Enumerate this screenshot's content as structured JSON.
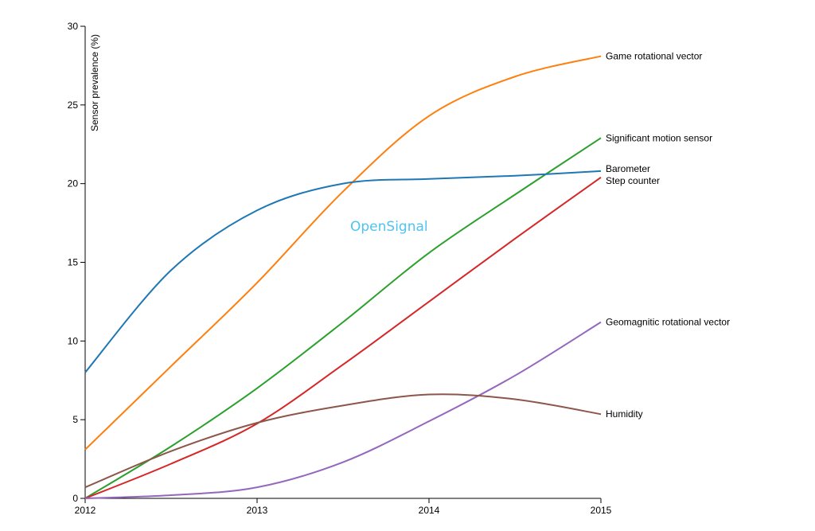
{
  "chart_data": {
    "type": "line",
    "title": "",
    "xlabel": "",
    "ylabel": "Sensor prevalence (%)",
    "watermark": "OpenSignal",
    "xlim": [
      2012,
      2015
    ],
    "ylim": [
      0,
      30
    ],
    "xticks": [
      "2012",
      "2013",
      "2014",
      "2015"
    ],
    "yticks": [
      "0",
      "5",
      "10",
      "15",
      "20",
      "25",
      "30"
    ],
    "grid": false,
    "legend": "end-of-line labels, right",
    "x": [
      2012,
      2012.5,
      2013,
      2013.5,
      2014,
      2014.5,
      2015
    ],
    "series": [
      {
        "name": "Game rotational vector",
        "color": "#ff7f0e",
        "values": [
          3.1,
          8.4,
          13.7,
          19.5,
          24.3,
          26.8,
          28.1
        ]
      },
      {
        "name": "Significant motion sensor",
        "color": "#2ca02c",
        "values": [
          0,
          3.3,
          7.0,
          11.2,
          15.6,
          19.3,
          22.9
        ]
      },
      {
        "name": "Barometer",
        "color": "#1f77b4",
        "values": [
          8.0,
          14.5,
          18.3,
          20.0,
          20.3,
          20.5,
          20.8
        ]
      },
      {
        "name": "Step counter",
        "color": "#d62728",
        "values": [
          0,
          2.2,
          4.75,
          8.5,
          12.5,
          16.5,
          20.4
        ]
      },
      {
        "name": "Geomagnitic rotational vector",
        "color": "#9467bd",
        "values": [
          0,
          0.2,
          0.7,
          2.3,
          4.9,
          7.8,
          11.2
        ]
      },
      {
        "name": "Humidity",
        "color": "#8c564b",
        "values": [
          0.7,
          3.0,
          4.8,
          5.9,
          6.6,
          6.3,
          5.35
        ]
      }
    ]
  }
}
